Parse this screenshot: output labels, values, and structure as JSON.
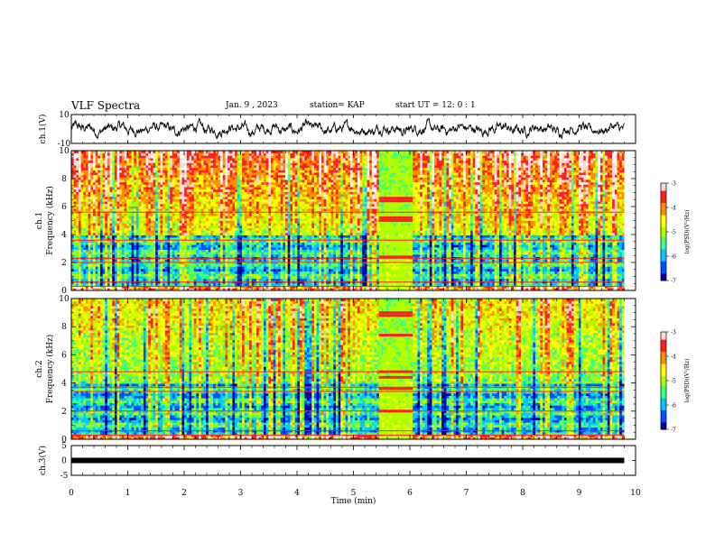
{
  "header": {
    "title": "VLF Spectra",
    "date": "Jan. 9 , 2023",
    "station": "station= KAP",
    "start": "start UT =  12: 0  : 1"
  },
  "colors": {
    "trace": "#000000",
    "colormap": [
      "#0000a0",
      "#0050ff",
      "#00c8ff",
      "#40ff80",
      "#b0ff00",
      "#ffff00",
      "#ff9000",
      "#ff2020",
      "#ffd8d8",
      "#ffffff"
    ]
  },
  "chart_data": [
    {
      "type": "line",
      "name": "ch1-waveform",
      "ylabel": "ch.1(V)",
      "ylim": [
        -10,
        10
      ],
      "yticks": [
        "10",
        "-10"
      ],
      "xlim": [
        0,
        10
      ]
    },
    {
      "type": "heatmap",
      "name": "ch1-spectrogram",
      "ylabel": "ch.1\nFrequency (kHz)",
      "ylabel_line1": "ch.1",
      "ylabel_line2": "Frequency (kHz)",
      "ylim": [
        0,
        10
      ],
      "yticks": [
        "0",
        "2",
        "4",
        "6",
        "8",
        "10"
      ],
      "xlim": [
        0,
        10
      ],
      "data_end_min": 9.8,
      "features": {
        "gap_start_min": 5.45,
        "gap_end_min": 6.05,
        "lines_in_gap_khz": [
          2.4,
          5.0,
          5.2,
          6.4,
          6.6
        ],
        "persistent_lines_khz": [
          0.3,
          0.6,
          2.0,
          2.3,
          3.6,
          5.6
        ]
      },
      "colorbar": {
        "label": "log(PSD)(V²/Hz)",
        "range": [
          -7,
          -3
        ],
        "ticks": [
          "-3",
          "-4",
          "-5",
          "-6",
          "-7"
        ]
      }
    },
    {
      "type": "heatmap",
      "name": "ch2-spectrogram",
      "ylabel": "ch.2\nFrequency (kHz)",
      "ylabel_line1": "ch.2",
      "ylabel_line2": "Frequency (kHz)",
      "ylim": [
        0,
        10
      ],
      "yticks": [
        "0",
        "2",
        "4",
        "6",
        "8",
        "10"
      ],
      "xlim": [
        0,
        10
      ],
      "data_end_min": 9.8,
      "features": {
        "gap_start_min": 5.45,
        "gap_end_min": 6.05,
        "lines_in_gap_khz": [
          2.0,
          3.6,
          4.4,
          4.8,
          7.4,
          8.8,
          9.0
        ],
        "persistent_lines_khz": [
          0.3,
          0.6,
          2.0,
          3.4,
          3.7,
          4.8
        ]
      },
      "colorbar": {
        "label": "log(PSD)(V²/Hz)",
        "range": [
          -7,
          -3
        ],
        "ticks": [
          "-3",
          "-4",
          "-5",
          "-6",
          "-7"
        ]
      }
    },
    {
      "type": "line",
      "name": "ch3-waveform",
      "ylabel": "ch.3(V)",
      "ylim": [
        -5,
        5
      ],
      "yticks": [
        "5",
        "0",
        "-5"
      ],
      "xlim": [
        0,
        10
      ],
      "level_v": 0
    }
  ],
  "xaxis": {
    "label": "Time (min)",
    "ticks": [
      "0",
      "1",
      "2",
      "3",
      "4",
      "5",
      "6",
      "7",
      "8",
      "9",
      "10"
    ]
  }
}
